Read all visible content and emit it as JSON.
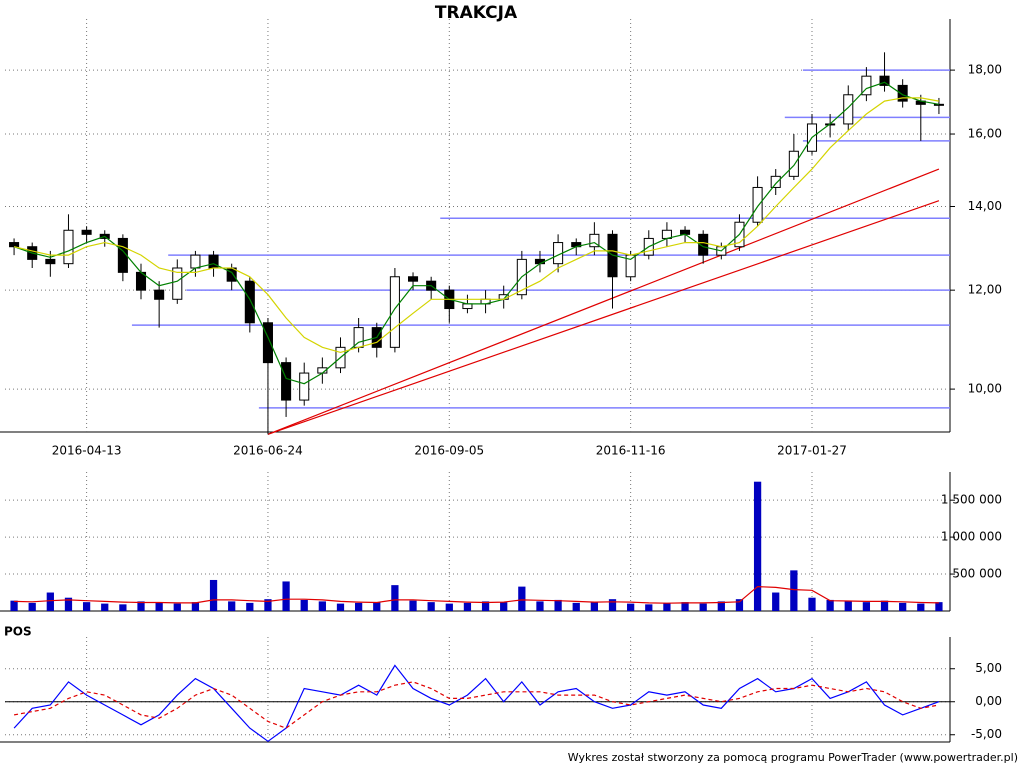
{
  "chart_data": [
    {
      "type": "candlestick",
      "title": "TRAKCJA",
      "categories": [
        null,
        null,
        null,
        null,
        "2016-04-13",
        null,
        null,
        null,
        null,
        null,
        null,
        null,
        null,
        null,
        "2016-06-24",
        null,
        null,
        null,
        null,
        null,
        null,
        null,
        null,
        null,
        "2016-09-05",
        null,
        null,
        null,
        null,
        null,
        null,
        null,
        null,
        null,
        "2016-11-16",
        null,
        null,
        null,
        null,
        null,
        null,
        null,
        null,
        null,
        "2017-01-27",
        null,
        null,
        null,
        null,
        null,
        null,
        null
      ],
      "open": [
        13.1,
        13.0,
        12.7,
        12.6,
        13.4,
        13.3,
        13.2,
        12.4,
        12.0,
        11.8,
        12.5,
        12.8,
        12.5,
        12.2,
        11.3,
        10.5,
        9.8,
        10.3,
        10.4,
        10.8,
        11.2,
        10.8,
        12.3,
        12.2,
        12.0,
        11.6,
        11.7,
        11.8,
        11.9,
        12.7,
        12.6,
        13.1,
        13.0,
        13.3,
        12.3,
        12.8,
        13.2,
        13.4,
        13.3,
        12.8,
        13.0,
        13.6,
        14.5,
        14.8,
        15.5,
        16.3,
        16.3,
        17.2,
        17.8,
        17.5,
        17.0,
        16.9
      ],
      "high": [
        13.2,
        13.1,
        12.9,
        13.8,
        13.5,
        13.4,
        13.3,
        12.6,
        12.2,
        12.7,
        12.9,
        12.9,
        12.6,
        12.3,
        11.4,
        10.6,
        10.5,
        10.6,
        11.0,
        11.4,
        11.3,
        12.5,
        12.4,
        12.3,
        12.1,
        11.9,
        12.0,
        12.1,
        12.9,
        12.9,
        13.3,
        13.2,
        13.6,
        13.4,
        12.9,
        13.4,
        13.6,
        13.5,
        13.4,
        13.1,
        13.8,
        14.8,
        15.0,
        16.0,
        16.6,
        16.6,
        17.5,
        18.1,
        18.6,
        17.7,
        17.2,
        17.1
      ],
      "low": [
        12.8,
        12.5,
        12.3,
        12.5,
        13.1,
        13.0,
        12.2,
        11.8,
        11.2,
        11.7,
        12.3,
        12.3,
        12.0,
        11.1,
        9.2,
        9.5,
        9.7,
        10.1,
        10.3,
        10.7,
        10.6,
        10.7,
        12.0,
        11.8,
        11.3,
        11.5,
        11.5,
        11.6,
        11.8,
        12.4,
        12.4,
        12.8,
        12.8,
        11.6,
        12.2,
        12.7,
        13.0,
        13.1,
        12.6,
        12.7,
        12.9,
        13.5,
        14.3,
        14.7,
        15.4,
        15.9,
        16.1,
        17.0,
        17.3,
        16.8,
        15.8,
        16.6
      ],
      "close": [
        13.0,
        12.7,
        12.6,
        13.4,
        13.3,
        13.2,
        12.4,
        12.0,
        11.8,
        12.5,
        12.8,
        12.5,
        12.2,
        11.3,
        10.5,
        9.8,
        10.3,
        10.4,
        10.8,
        11.2,
        10.8,
        12.3,
        12.2,
        12.0,
        11.6,
        11.7,
        11.8,
        11.9,
        12.7,
        12.6,
        13.1,
        13.0,
        13.3,
        12.3,
        12.8,
        13.2,
        13.4,
        13.3,
        12.8,
        13.0,
        13.6,
        14.5,
        14.8,
        15.5,
        16.3,
        16.3,
        17.2,
        17.8,
        17.5,
        17.0,
        16.9,
        16.9
      ],
      "series": [
        {
          "color": "#008000",
          "values": [
            13.0,
            12.85,
            12.75,
            12.9,
            13.1,
            13.25,
            12.9,
            12.4,
            12.1,
            12.2,
            12.5,
            12.6,
            12.4,
            11.8,
            11.0,
            10.2,
            10.1,
            10.3,
            10.6,
            10.9,
            11.0,
            11.6,
            12.1,
            12.1,
            11.8,
            11.7,
            11.7,
            11.8,
            12.3,
            12.6,
            12.8,
            13.0,
            13.1,
            12.8,
            12.7,
            13.0,
            13.2,
            13.3,
            13.0,
            12.9,
            13.3,
            14.0,
            14.6,
            15.1,
            15.9,
            16.3,
            16.8,
            17.4,
            17.6,
            17.2,
            17.0,
            16.9
          ]
        },
        {
          "color": "#d4d400",
          "values": [
            13.0,
            12.9,
            12.8,
            12.8,
            13.0,
            13.1,
            13.0,
            12.8,
            12.5,
            12.4,
            12.4,
            12.5,
            12.5,
            12.3,
            11.9,
            11.4,
            11.0,
            10.8,
            10.7,
            10.8,
            10.9,
            11.2,
            11.5,
            11.8,
            11.8,
            11.8,
            11.8,
            11.8,
            12.0,
            12.2,
            12.5,
            12.7,
            12.9,
            12.9,
            12.8,
            12.9,
            13.0,
            13.1,
            13.1,
            13.0,
            13.1,
            13.5,
            14.0,
            14.5,
            15.0,
            15.6,
            16.1,
            16.6,
            17.0,
            17.1,
            17.1,
            17.0
          ]
        }
      ],
      "levels": [
        {
          "value": 18.0,
          "start": 44
        },
        {
          "value": 16.5,
          "start": 43
        },
        {
          "value": 15.8,
          "start": 44
        },
        {
          "value": 13.7,
          "start": 24
        },
        {
          "value": 12.8,
          "start": 9
        },
        {
          "value": 12.0,
          "start": 10
        },
        {
          "value": 11.25,
          "start": 7
        },
        {
          "value": 9.66,
          "start": 14
        }
      ],
      "level_color": "#7f7fff",
      "trendlines": [
        {
          "from": [
            14,
            9.2
          ],
          "to": [
            51,
            15.0
          ]
        },
        {
          "from": [
            14,
            9.2
          ],
          "to": [
            51,
            14.15
          ]
        }
      ],
      "trend_color": "#e00000",
      "log_scale": true,
      "grid": true,
      "ylim": [
        9.24,
        19.56
      ],
      "yticks": [
        {
          "value": 10,
          "label": "10,00"
        },
        {
          "value": 12,
          "label": "12,00"
        },
        {
          "value": 14,
          "label": "14,00"
        },
        {
          "value": 16,
          "label": "16,00"
        },
        {
          "value": 18,
          "label": "18,00"
        }
      ]
    },
    {
      "type": "bar",
      "color": "#0000c0",
      "values": [
        140000,
        110000,
        250000,
        180000,
        120000,
        100000,
        90000,
        130000,
        110000,
        100000,
        120000,
        420000,
        130000,
        110000,
        160000,
        400000,
        150000,
        130000,
        100000,
        110000,
        120000,
        350000,
        140000,
        120000,
        100000,
        110000,
        130000,
        120000,
        330000,
        130000,
        150000,
        110000,
        120000,
        160000,
        100000,
        90000,
        110000,
        120000,
        100000,
        130000,
        160000,
        1750000,
        250000,
        550000,
        180000,
        150000,
        130000,
        120000,
        140000,
        110000,
        100000,
        120000
      ],
      "series": [
        {
          "color": "#e00000",
          "values": [
            130000,
            125000,
            140000,
            150000,
            140000,
            130000,
            120000,
            115000,
            115000,
            110000,
            110000,
            150000,
            150000,
            140000,
            130000,
            160000,
            160000,
            150000,
            130000,
            120000,
            115000,
            150000,
            150000,
            140000,
            130000,
            120000,
            115000,
            120000,
            150000,
            145000,
            140000,
            130000,
            120000,
            125000,
            120000,
            110000,
            105000,
            110000,
            110000,
            115000,
            125000,
            330000,
            320000,
            290000,
            280000,
            140000,
            135000,
            130000,
            130000,
            125000,
            115000,
            110000
          ]
        }
      ],
      "grid": true,
      "ylim": [
        0,
        1800000
      ],
      "yticks": [
        {
          "value": 500000,
          "label": "500 000"
        },
        {
          "value": 1000000,
          "label": "1 000 000"
        },
        {
          "value": 1500000,
          "label": "1 500 000"
        }
      ]
    },
    {
      "type": "line",
      "title": "POS",
      "series": [
        {
          "color": "#0000ff",
          "values": [
            -4.0,
            -1.0,
            -0.5,
            3.0,
            1.0,
            -0.5,
            -2.0,
            -3.5,
            -2.0,
            1.0,
            3.5,
            2.0,
            -1.0,
            -4.0,
            -6.0,
            -4.0,
            2.0,
            1.5,
            1.0,
            2.5,
            1.0,
            5.5,
            2.0,
            0.5,
            -0.5,
            1.0,
            3.5,
            0.0,
            3.0,
            -0.5,
            1.5,
            2.0,
            0.0,
            -1.0,
            -0.5,
            1.5,
            1.0,
            1.5,
            -0.5,
            -1.0,
            2.0,
            3.5,
            1.5,
            2.0,
            3.5,
            0.5,
            1.5,
            3.0,
            -0.5,
            -2.0,
            -1.0,
            0.0
          ]
        },
        {
          "color": "#e00000",
          "dashed": true,
          "values": [
            -2.0,
            -1.5,
            -1.0,
            0.5,
            1.5,
            1.0,
            -0.5,
            -2.0,
            -2.5,
            -1.0,
            1.0,
            2.0,
            1.0,
            -1.0,
            -3.0,
            -4.0,
            -2.0,
            0.0,
            1.0,
            1.5,
            1.5,
            2.5,
            3.0,
            2.0,
            0.5,
            0.5,
            1.0,
            1.5,
            1.5,
            1.5,
            1.0,
            1.0,
            1.0,
            0.0,
            -0.5,
            0.0,
            0.5,
            1.0,
            0.5,
            0.0,
            0.5,
            1.5,
            2.0,
            2.0,
            2.5,
            2.0,
            1.5,
            2.0,
            1.5,
            0.0,
            -1.0,
            -0.5
          ]
        }
      ],
      "hline": 0,
      "grid": true,
      "ylim": [
        -6.1,
        8.9
      ],
      "yticks": [
        {
          "value": -5,
          "label": "-5,00"
        },
        {
          "value": 0,
          "label": "0,00"
        },
        {
          "value": 5,
          "label": "5,00"
        }
      ]
    }
  ],
  "footer": "Wykres został stworzony za pomocą programu PowerTrader (www.powertrader.pl)"
}
